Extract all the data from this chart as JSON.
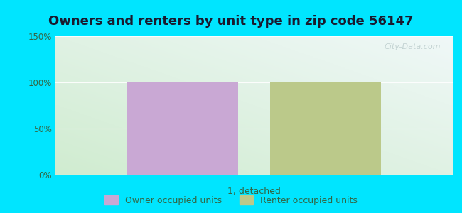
{
  "title": "Owners and renters by unit type in zip code 56147",
  "title_fontsize": 13,
  "title_fontweight": "bold",
  "categories": [
    "1, detached"
  ],
  "owner_values": [
    100
  ],
  "renter_values": [
    100
  ],
  "owner_color": "#c9a8d4",
  "renter_color": "#bbc98a",
  "ylim": [
    0,
    150
  ],
  "yticks": [
    0,
    50,
    100,
    150
  ],
  "ytick_labels": [
    "0%",
    "50%",
    "100%",
    "150%"
  ],
  "watermark": "City-Data.com",
  "legend_owner": "Owner occupied units",
  "legend_renter": "Renter occupied units",
  "bar_width": 0.28,
  "bar_gap": 0.08,
  "fig_bg_color": "#00e5ff",
  "plot_bg_left_bottom": "#d0ecd0",
  "plot_bg_right_top": "#f0f8f8",
  "tick_color": "#336644",
  "title_color": "#1a1a2e"
}
